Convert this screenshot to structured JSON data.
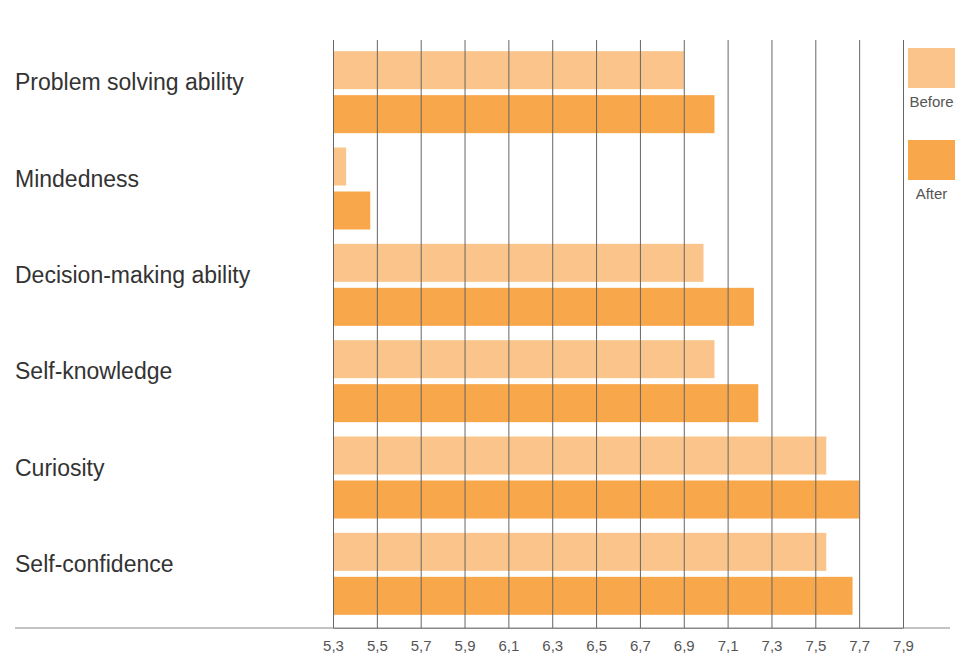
{
  "chart_data": {
    "type": "bar",
    "orientation": "horizontal",
    "categories": [
      "Problem solving ability",
      "Mindedness",
      "Decision-making ability",
      "Self-knowledge",
      "Curiosity",
      "Self-confidence"
    ],
    "series": [
      {
        "name": "Before",
        "color": "#FBC48B",
        "values": [
          6.9,
          5.36,
          6.99,
          7.04,
          7.55,
          7.55
        ]
      },
      {
        "name": "After",
        "color": "#F8A74A",
        "values": [
          7.04,
          5.47,
          7.22,
          7.24,
          7.7,
          7.67
        ]
      }
    ],
    "xlim": [
      5.3,
      7.9
    ],
    "xticks": [
      {
        "value": 5.3,
        "label": "5,3"
      },
      {
        "value": 5.5,
        "label": "5,5"
      },
      {
        "value": 5.7,
        "label": "5,7"
      },
      {
        "value": 5.9,
        "label": "5,9"
      },
      {
        "value": 6.1,
        "label": "6,1"
      },
      {
        "value": 6.3,
        "label": "6,3"
      },
      {
        "value": 6.5,
        "label": "6,5"
      },
      {
        "value": 6.7,
        "label": "6,7"
      },
      {
        "value": 6.9,
        "label": "6,9"
      },
      {
        "value": 7.1,
        "label": "7,1"
      },
      {
        "value": 7.3,
        "label": "7,3"
      },
      {
        "value": 7.5,
        "label": "7,5"
      },
      {
        "value": 7.7,
        "label": "7,7"
      },
      {
        "value": 7.9,
        "label": "7,9"
      }
    ],
    "grid": true,
    "legend": "top-right"
  }
}
